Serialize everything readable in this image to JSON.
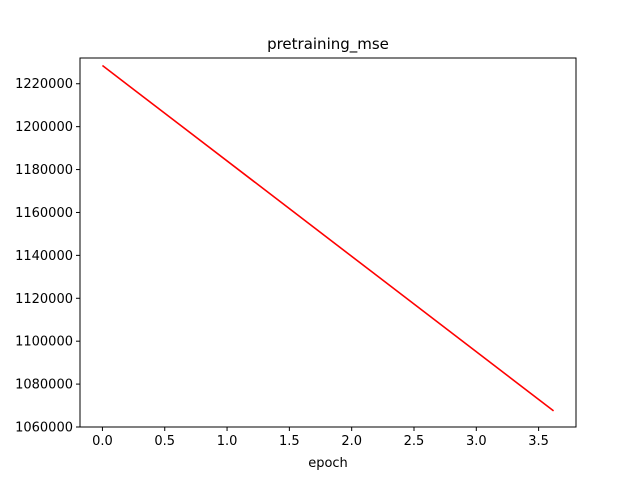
{
  "chart_data": {
    "type": "line",
    "title": "pretraining_mse",
    "xlabel": "epoch",
    "ylabel": "",
    "xlim": [
      -0.18,
      3.8
    ],
    "ylim": [
      1060000,
      1232000
    ],
    "xticks": [
      0.0,
      0.5,
      1.0,
      1.5,
      2.0,
      2.5,
      3.0,
      3.5
    ],
    "xtick_labels": [
      "0.0",
      "0.5",
      "1.0",
      "1.5",
      "2.0",
      "2.5",
      "3.0",
      "3.5"
    ],
    "yticks": [
      1060000,
      1080000,
      1100000,
      1120000,
      1140000,
      1160000,
      1180000,
      1200000,
      1220000
    ],
    "ytick_labels": [
      "1060000",
      "1080000",
      "1100000",
      "1120000",
      "1140000",
      "1160000",
      "1180000",
      "1200000",
      "1220000"
    ],
    "grid": false,
    "legend": "none",
    "series": [
      {
        "color": "#ff0000",
        "x": [
          0.0,
          3.62
        ],
        "y": [
          1228500,
          1067500
        ]
      }
    ]
  }
}
